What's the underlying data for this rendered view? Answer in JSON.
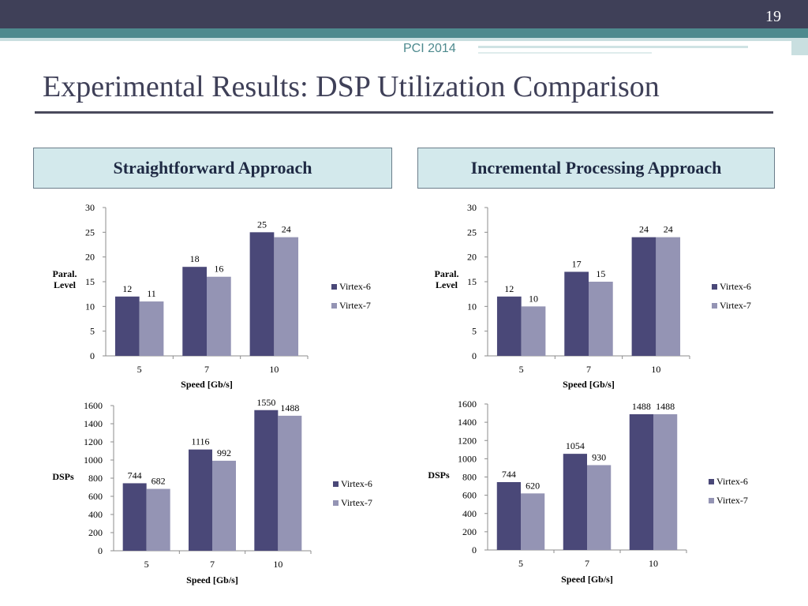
{
  "slide_number": "19",
  "conference": "PCI 2014",
  "title": "Experimental Results: DSP Utilization Comparison",
  "headers": [
    "Straightforward Approach",
    "Incremental Processing Approach"
  ],
  "colors": {
    "Virtex-6": "#4a4878",
    "Virtex-7": "#9494b4"
  },
  "chart_data": [
    {
      "type": "bar",
      "categories": [
        "5",
        "7",
        "10"
      ],
      "series": [
        {
          "name": "Virtex-6",
          "values": [
            12,
            18,
            25
          ]
        },
        {
          "name": "Virtex-7",
          "values": [
            11,
            16,
            24
          ]
        }
      ],
      "xlabel": "Speed [Gb/s]",
      "ylabel": "Paral. Level",
      "ylim": [
        0,
        30
      ],
      "yticks": [
        0,
        5,
        10,
        15,
        20,
        25,
        30
      ],
      "legend": "right",
      "grid": false
    },
    {
      "type": "bar",
      "categories": [
        "5",
        "7",
        "10"
      ],
      "series": [
        {
          "name": "Virtex-6",
          "values": [
            12,
            17,
            24
          ]
        },
        {
          "name": "Virtex-7",
          "values": [
            10,
            15,
            24
          ]
        }
      ],
      "xlabel": "Speed [Gb/s]",
      "ylabel": "Paral. Level",
      "ylim": [
        0,
        30
      ],
      "yticks": [
        0,
        5,
        10,
        15,
        20,
        25,
        30
      ],
      "legend": "right",
      "grid": false
    },
    {
      "type": "bar",
      "categories": [
        "5",
        "7",
        "10"
      ],
      "series": [
        {
          "name": "Virtex-6",
          "values": [
            744,
            1116,
            1550
          ]
        },
        {
          "name": "Virtex-7",
          "values": [
            682,
            992,
            1488
          ]
        }
      ],
      "xlabel": "Speed [Gb/s]",
      "ylabel": "DSPs",
      "ylim": [
        0,
        1600
      ],
      "yticks": [
        0,
        200,
        400,
        600,
        800,
        1000,
        1200,
        1400,
        1600
      ],
      "legend": "right",
      "grid": false
    },
    {
      "type": "bar",
      "categories": [
        "5",
        "7",
        "10"
      ],
      "series": [
        {
          "name": "Virtex-6",
          "values": [
            744,
            1054,
            1488
          ]
        },
        {
          "name": "Virtex-7",
          "values": [
            620,
            930,
            1488
          ]
        }
      ],
      "xlabel": "Speed [Gb/s]",
      "ylabel": "DSPs",
      "ylim": [
        0,
        1600
      ],
      "yticks": [
        0,
        200,
        400,
        600,
        800,
        1000,
        1200,
        1400,
        1600
      ],
      "legend": "right",
      "grid": false
    }
  ]
}
